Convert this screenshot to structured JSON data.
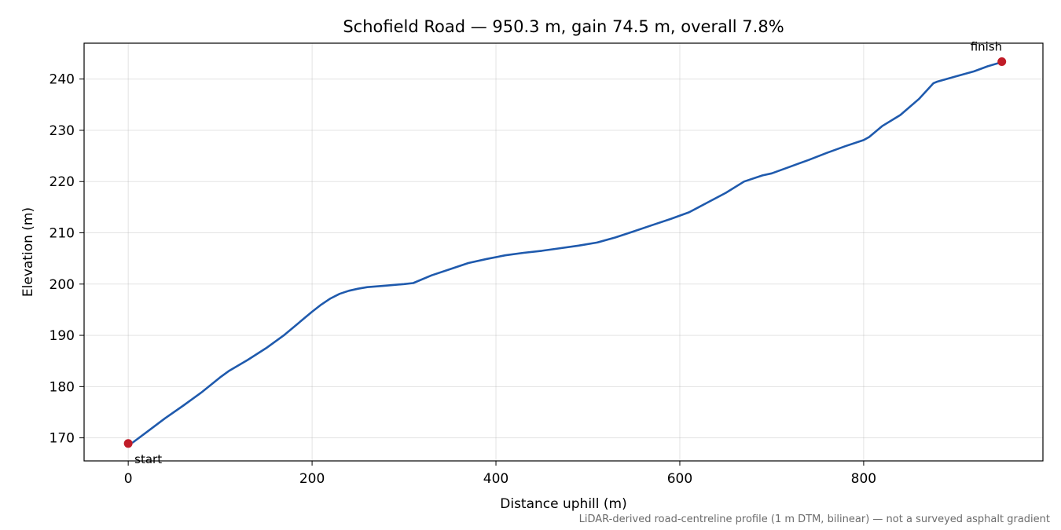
{
  "chart_data": {
    "type": "line",
    "title": "Schofield Road — 950.3 m, gain 74.5 m, overall 7.8%",
    "xlabel": "Distance uphill (m)",
    "ylabel": "Elevation (m)",
    "xlim": [
      -48,
      995
    ],
    "ylim": [
      165.5,
      247
    ],
    "xticks": [
      0,
      200,
      400,
      600,
      800
    ],
    "yticks": [
      170,
      180,
      190,
      200,
      210,
      220,
      230,
      240
    ],
    "grid": true,
    "line_color": "#1f5aad",
    "marker_color": "#c01c28",
    "series": [
      {
        "x": [
          5,
          20,
          40,
          60,
          80,
          100,
          110,
          130,
          150,
          170,
          190,
          200,
          210,
          220,
          230,
          240,
          250,
          260,
          280,
          300,
          310,
          330,
          350,
          370,
          390,
          410,
          430,
          450,
          470,
          490,
          510,
          530,
          550,
          570,
          590,
          610,
          630,
          650,
          670,
          690,
          700,
          720,
          740,
          760,
          780,
          800,
          806,
          820,
          840,
          860,
          876,
          880,
          900,
          920,
          935,
          950
        ],
        "y": [
          169.1,
          171.1,
          173.8,
          176.3,
          178.9,
          181.8,
          183.1,
          185.2,
          187.5,
          190.1,
          193.1,
          194.6,
          196.0,
          197.2,
          198.1,
          198.7,
          199.1,
          199.4,
          199.7,
          200.0,
          200.2,
          201.7,
          202.9,
          204.1,
          204.9,
          205.6,
          206.1,
          206.5,
          207.0,
          207.5,
          208.1,
          209.1,
          210.3,
          211.5,
          212.7,
          214.0,
          215.9,
          217.8,
          220.0,
          221.2,
          221.6,
          222.9,
          224.2,
          225.6,
          226.9,
          228.1,
          228.7,
          230.8,
          233.0,
          236.1,
          239.2,
          239.5,
          240.5,
          241.5,
          242.5,
          243.3
        ]
      }
    ],
    "annotations": [
      {
        "label": "start",
        "x": 0,
        "y": 168.9
      },
      {
        "label": "finish",
        "x": 950.3,
        "y": 243.4
      }
    ],
    "footnote": "LiDAR-derived road-centreline profile (1 m DTM, bilinear) — not a surveyed asphalt gradient"
  }
}
